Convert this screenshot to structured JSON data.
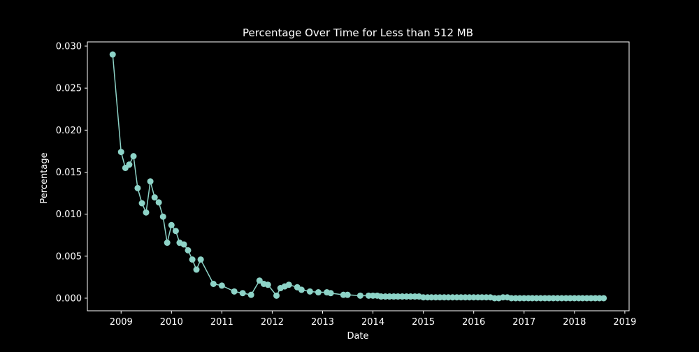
{
  "chart_data": {
    "type": "line",
    "title": "Percentage Over Time for Less than 512 MB",
    "xlabel": "Date",
    "ylabel": "Percentage",
    "x_ticks": [
      "2009",
      "2010",
      "2011",
      "2012",
      "2013",
      "2014",
      "2015",
      "2016",
      "2017",
      "2018",
      "2019"
    ],
    "y_ticks": [
      "0.000",
      "0.005",
      "0.010",
      "0.015",
      "0.020",
      "0.025",
      "0.030"
    ],
    "xlim": [
      "2008-05-01",
      "2019-02-01"
    ],
    "ylim": [
      -0.0015,
      0.0305
    ],
    "grid": false,
    "colors": {
      "background": "#000000",
      "series": "#8dd3c7",
      "axis": "#ffffff"
    },
    "series": [
      {
        "points": [
          [
            "2008-11-01",
            0.029
          ],
          [
            "2009-01-01",
            0.0174
          ],
          [
            "2009-02-01",
            0.0155
          ],
          [
            "2009-03-01",
            0.0159
          ],
          [
            "2009-04-01",
            0.0169
          ],
          [
            "2009-05-01",
            0.0131
          ],
          [
            "2009-06-01",
            0.0113
          ],
          [
            "2009-07-01",
            0.0102
          ],
          [
            "2009-08-01",
            0.0139
          ],
          [
            "2009-09-01",
            0.012
          ],
          [
            "2009-10-01",
            0.0114
          ],
          [
            "2009-11-01",
            0.0097
          ],
          [
            "2009-12-01",
            0.0066
          ],
          [
            "2010-01-01",
            0.0087
          ],
          [
            "2010-02-01",
            0.008
          ],
          [
            "2010-03-01",
            0.0066
          ],
          [
            "2010-04-01",
            0.0064
          ],
          [
            "2010-05-01",
            0.0057
          ],
          [
            "2010-06-01",
            0.0046
          ],
          [
            "2010-07-01",
            0.0034
          ],
          [
            "2010-08-01",
            0.0046
          ],
          [
            "2010-11-01",
            0.0017
          ],
          [
            "2011-01-01",
            0.0015
          ],
          [
            "2011-04-01",
            0.0008
          ],
          [
            "2011-06-01",
            0.0006
          ],
          [
            "2011-08-01",
            0.0004
          ],
          [
            "2011-10-01",
            0.0021
          ],
          [
            "2011-11-01",
            0.0017
          ],
          [
            "2011-12-01",
            0.0016
          ],
          [
            "2012-02-01",
            0.0003
          ],
          [
            "2012-03-01",
            0.0012
          ],
          [
            "2012-04-01",
            0.0014
          ],
          [
            "2012-05-01",
            0.0016
          ],
          [
            "2012-07-01",
            0.0013
          ],
          [
            "2012-08-01",
            0.001
          ],
          [
            "2012-10-01",
            0.0008
          ],
          [
            "2012-12-01",
            0.0007
          ],
          [
            "2013-02-01",
            0.0007
          ],
          [
            "2013-03-01",
            0.0006
          ],
          [
            "2013-06-01",
            0.0004
          ],
          [
            "2013-07-01",
            0.0004
          ],
          [
            "2013-10-01",
            0.0003
          ],
          [
            "2013-12-01",
            0.0003
          ],
          [
            "2014-01-01",
            0.0003
          ],
          [
            "2014-02-01",
            0.0003
          ],
          [
            "2014-03-01",
            0.0002
          ],
          [
            "2014-04-01",
            0.0002
          ],
          [
            "2014-05-01",
            0.0002
          ],
          [
            "2014-06-01",
            0.0002
          ],
          [
            "2014-07-01",
            0.0002
          ],
          [
            "2014-08-01",
            0.0002
          ],
          [
            "2014-09-01",
            0.0002
          ],
          [
            "2014-10-01",
            0.0002
          ],
          [
            "2014-11-01",
            0.0002
          ],
          [
            "2014-12-01",
            0.0002
          ],
          [
            "2015-01-01",
            0.0001
          ],
          [
            "2015-02-01",
            0.0001
          ],
          [
            "2015-03-01",
            0.0001
          ],
          [
            "2015-04-01",
            0.0001
          ],
          [
            "2015-05-01",
            0.0001
          ],
          [
            "2015-06-01",
            0.0001
          ],
          [
            "2015-07-01",
            0.0001
          ],
          [
            "2015-08-01",
            0.0001
          ],
          [
            "2015-09-01",
            0.0001
          ],
          [
            "2015-10-01",
            0.0001
          ],
          [
            "2015-11-01",
            0.0001
          ],
          [
            "2015-12-01",
            0.0001
          ],
          [
            "2016-01-01",
            0.0001
          ],
          [
            "2016-02-01",
            0.0001
          ],
          [
            "2016-03-01",
            0.0001
          ],
          [
            "2016-04-01",
            0.0001
          ],
          [
            "2016-05-01",
            0.0001
          ],
          [
            "2016-06-01",
            0.0
          ],
          [
            "2016-07-01",
            0.0
          ],
          [
            "2016-08-01",
            0.0001
          ],
          [
            "2016-09-01",
            0.0001
          ],
          [
            "2016-10-01",
            0.0
          ],
          [
            "2016-11-01",
            0.0
          ],
          [
            "2016-12-01",
            0.0
          ],
          [
            "2017-01-01",
            0.0
          ],
          [
            "2017-02-01",
            0.0
          ],
          [
            "2017-03-01",
            0.0
          ],
          [
            "2017-04-01",
            0.0
          ],
          [
            "2017-05-01",
            0.0
          ],
          [
            "2017-06-01",
            0.0
          ],
          [
            "2017-07-01",
            0.0
          ],
          [
            "2017-08-01",
            0.0
          ],
          [
            "2017-09-01",
            0.0
          ],
          [
            "2017-10-01",
            0.0
          ],
          [
            "2017-11-01",
            0.0
          ],
          [
            "2017-12-01",
            0.0
          ],
          [
            "2018-01-01",
            0.0
          ],
          [
            "2018-02-01",
            0.0
          ],
          [
            "2018-03-01",
            0.0
          ],
          [
            "2018-04-01",
            0.0
          ],
          [
            "2018-05-01",
            0.0
          ],
          [
            "2018-06-01",
            0.0
          ],
          [
            "2018-07-01",
            0.0
          ],
          [
            "2018-08-01",
            0.0
          ]
        ]
      }
    ]
  }
}
